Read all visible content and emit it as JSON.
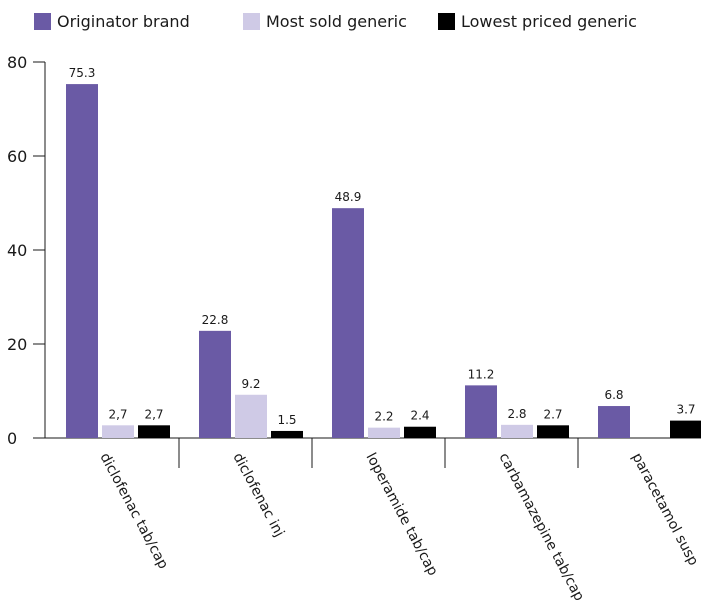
{
  "chart_data": {
    "type": "bar",
    "categories": [
      "diclofenac tab/cap",
      "diclofenac inj",
      "loperamide tab/cap",
      "carbamazepine tab/cap",
      "paracetamol susp"
    ],
    "series": [
      {
        "name": "Originator brand",
        "color": "#6a5aa5",
        "values": [
          75.3,
          22.8,
          48.9,
          11.2,
          6.8
        ],
        "labels": [
          "75.3",
          "22.8",
          "48.9",
          "11.2",
          "6.8"
        ]
      },
      {
        "name": "Most sold generic",
        "color": "#cfcae6",
        "values": [
          2.7,
          9.2,
          2.2,
          2.8,
          null
        ],
        "labels": [
          "2,7",
          "9.2",
          "2.2",
          "2.8",
          ""
        ]
      },
      {
        "name": "Lowest priced generic",
        "color": "#000000",
        "values": [
          2.7,
          1.5,
          2.4,
          2.7,
          3.7
        ],
        "labels": [
          "2,7",
          "1.5",
          "2.4",
          "2.7",
          "3.7"
        ]
      }
    ],
    "yticks": [
      "0",
      "20",
      "40",
      "60",
      "80"
    ],
    "ylim": [
      0,
      80
    ],
    "grid": false,
    "legend_position": "top-left"
  }
}
